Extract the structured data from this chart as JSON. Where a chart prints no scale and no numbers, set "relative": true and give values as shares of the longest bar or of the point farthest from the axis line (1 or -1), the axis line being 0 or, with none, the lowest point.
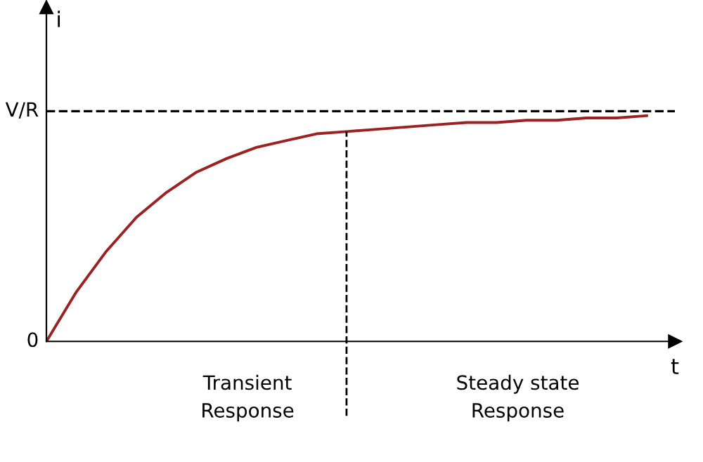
{
  "chart_data": {
    "type": "line",
    "xlabel": "t",
    "ylabel": "i",
    "relative": true,
    "categories": [
      null,
      null,
      null,
      null,
      null,
      null,
      null,
      null,
      null,
      null,
      null,
      null,
      null,
      null,
      null,
      null,
      null,
      null,
      null,
      null,
      null
    ],
    "series": [
      {
        "color": "#9b2222",
        "values": [
          0,
          0.22,
          0.4,
          0.55,
          0.66,
          0.75,
          0.81,
          0.86,
          0.89,
          0.92,
          0.93,
          0.94,
          0.95,
          0.96,
          0.97,
          0.97,
          0.98,
          0.98,
          0.99,
          0.99,
          1
        ]
      }
    ],
    "ref_lines": [
      {
        "axis": "y",
        "value": 1.02,
        "label": "V/R",
        "line_style": "dashed",
        "color": "#000000"
      }
    ],
    "annotations": [
      "0",
      "Transient\nResponse",
      "Steady state\nResponse"
    ],
    "line_style": "solid",
    "marker": "none"
  }
}
